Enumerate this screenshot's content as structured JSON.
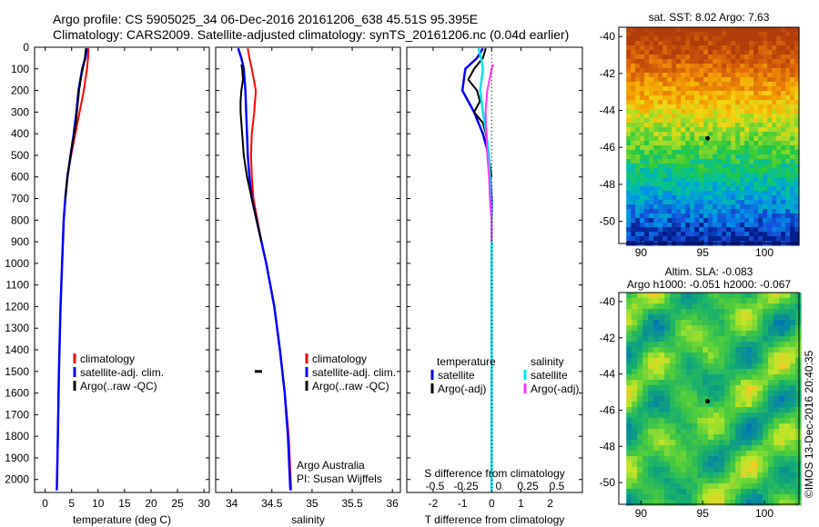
{
  "header": {
    "line1": "Argo profile: CS 5905025_34 06-Dec-2016 20161206_638 45.51S 95.395E",
    "line2": "Climatology: CARS2009. Satellite-adjusted climatology: synTS_20161206.nc (0.04d earlier)"
  },
  "colors": {
    "climatology": "#ff0000",
    "satellite": "#0000ff",
    "argo": "#000000",
    "sal_satellite": "#00e5ee",
    "sal_argo": "#ff33ff"
  },
  "chart_data": [
    {
      "id": "temperature-panel",
      "type": "line",
      "xlabel": "temperature (deg C)",
      "ylabel": "",
      "xlim": [
        -2,
        31
      ],
      "ylim": [
        2060,
        0
      ],
      "xticks": [
        "0",
        "5",
        "10",
        "15",
        "20",
        "25",
        "30"
      ],
      "yticks": [
        "0",
        "100",
        "200",
        "300",
        "400",
        "500",
        "600",
        "700",
        "800",
        "900",
        "1000",
        "1100",
        "1200",
        "1300",
        "1400",
        "1500",
        "1600",
        "1700",
        "1800",
        "1900",
        "2000"
      ],
      "legend": [
        "climatology",
        "satellite-adj. clim.",
        "Argo(..raw -QC)"
      ],
      "series": [
        {
          "name": "climatology",
          "depth": [
            5,
            50,
            100,
            200,
            300,
            400,
            500,
            600,
            700,
            800,
            1000,
            1200,
            1500,
            1800,
            2050
          ],
          "values": [
            8.2,
            8.1,
            7.9,
            7.3,
            6.5,
            5.7,
            4.9,
            4.2,
            3.8,
            3.5,
            3.2,
            2.9,
            2.6,
            2.4,
            2.2
          ]
        },
        {
          "name": "satellite-adj. clim.",
          "depth": [
            5,
            50,
            100,
            200,
            300,
            400,
            500,
            600,
            700,
            800,
            1000,
            1200,
            1500,
            1800,
            2050
          ],
          "values": [
            7.9,
            7.6,
            7.0,
            6.3,
            5.9,
            5.4,
            4.8,
            4.2,
            3.8,
            3.5,
            3.2,
            2.9,
            2.6,
            2.4,
            2.2
          ]
        },
        {
          "name": "Argo(..raw -QC)",
          "depth": [
            5,
            50,
            100,
            150,
            200,
            250,
            300,
            350,
            400,
            450,
            500,
            600,
            700
          ],
          "values": [
            7.7,
            7.5,
            7.1,
            6.7,
            6.4,
            6.2,
            6.0,
            5.8,
            5.5,
            5.1,
            4.8,
            4.2,
            3.8
          ]
        }
      ]
    },
    {
      "id": "salinity-panel",
      "type": "line",
      "xlabel": "salinity",
      "ylabel": "",
      "xlim": [
        33.8,
        36.1
      ],
      "ylim": [
        2060,
        0
      ],
      "xticks": [
        "34",
        "34.5",
        "35",
        "35.5",
        "36"
      ],
      "legend": [
        "climatology",
        "satellite-adj. clim.",
        "Argo(..raw -QC)"
      ],
      "annotations": [
        "Argo Australia",
        "PI: Susan Wijffels"
      ],
      "series": [
        {
          "name": "climatology",
          "depth": [
            5,
            50,
            100,
            200,
            300,
            400,
            500,
            600,
            700,
            800,
            900,
            1000,
            1200,
            1400,
            1600,
            1800,
            2050
          ],
          "values": [
            34.2,
            34.22,
            34.25,
            34.3,
            34.28,
            34.25,
            34.24,
            34.25,
            34.27,
            34.32,
            34.37,
            34.43,
            34.53,
            34.6,
            34.66,
            34.71,
            34.74
          ]
        },
        {
          "name": "satellite-adj. clim.",
          "depth": [
            5,
            50,
            100,
            200,
            300,
            400,
            500,
            600,
            700,
            800,
            900,
            1000,
            1200,
            1400,
            1600,
            1800,
            2050
          ],
          "values": [
            34.08,
            34.12,
            34.15,
            34.17,
            34.18,
            34.19,
            34.2,
            34.22,
            34.25,
            34.31,
            34.37,
            34.43,
            34.53,
            34.6,
            34.66,
            34.7,
            34.73
          ]
        },
        {
          "name": "Argo(..raw -QC)",
          "depth": [
            80,
            100,
            150,
            200,
            250,
            300,
            350,
            400,
            450,
            500,
            550,
            600,
            650,
            700,
            750,
            800,
            850,
            900
          ],
          "values": [
            34.12,
            34.13,
            34.14,
            34.12,
            34.11,
            34.11,
            34.12,
            34.13,
            34.14,
            34.15,
            34.17,
            34.19,
            34.22,
            34.25,
            34.28,
            34.31,
            34.34,
            34.37
          ]
        },
        {
          "name": "Argo outlier",
          "depth": [
            1500
          ],
          "values": [
            34.4
          ]
        }
      ]
    },
    {
      "id": "difference-panel",
      "type": "line",
      "xlabel": "T difference from climatology",
      "xlabel_top": "S difference from climatology",
      "xlim": [
        -2.9,
        3.1
      ],
      "ylim": [
        2060,
        0
      ],
      "xticks": [
        "-2",
        "-1",
        "0",
        "1",
        "2"
      ],
      "xticks_top": [
        "-0.5",
        "-0.25",
        "0",
        "0.25",
        "0.5"
      ],
      "legend_titles": [
        "temperature",
        "salinity"
      ],
      "legend": [
        "satellite",
        "Argo(-adj)",
        "satellite",
        "Argo(-adj)"
      ],
      "series": [
        {
          "name": "temperature satellite",
          "depth": [
            5,
            50,
            100,
            200,
            300,
            400,
            500,
            700,
            1000,
            1500,
            2050
          ],
          "values": [
            -0.3,
            -0.5,
            -0.9,
            -1.0,
            -0.6,
            -0.3,
            -0.1,
            0.0,
            0.0,
            0.0,
            0.0
          ]
        },
        {
          "name": "temperature Argo(-adj)",
          "depth": [
            5,
            50,
            100,
            150,
            200,
            250,
            300,
            350,
            400,
            500,
            600
          ],
          "values": [
            -0.2,
            -0.3,
            -0.6,
            -0.8,
            -0.5,
            -0.4,
            -0.6,
            -0.3,
            -0.2,
            -0.1,
            0.0
          ]
        },
        {
          "name": "salinity satellite",
          "depth": [
            5,
            50,
            100,
            200,
            300,
            400,
            500,
            600,
            800,
            1000,
            1500,
            2050
          ],
          "values": [
            -0.15,
            -0.12,
            -0.1,
            -0.13,
            -0.1,
            -0.06,
            -0.03,
            -0.02,
            0.0,
            0.0,
            0.0,
            0.0
          ]
        },
        {
          "name": "salinity Argo(-adj)",
          "depth": [
            80,
            100,
            200,
            300,
            400,
            500,
            600,
            700,
            800,
            900
          ],
          "values": [
            0.02,
            0.0,
            -0.05,
            -0.07,
            -0.06,
            -0.05,
            -0.03,
            -0.02,
            0.0,
            0.0
          ]
        }
      ]
    }
  ],
  "maps": {
    "sst": {
      "title": "sat. SST: 8.02  Argo: 7.63",
      "yticks": [
        "-40",
        "-42",
        "-44",
        "-46",
        "-48",
        "-50"
      ],
      "xticks": [
        "90",
        "95",
        "100"
      ]
    },
    "sla": {
      "title_line1": "Altim. SLA: -0.083",
      "title_line2": "Argo h1000: -0.051  h2000: -0.067",
      "yticks": [
        "-40",
        "-42",
        "-44",
        "-46",
        "-48",
        "-50"
      ],
      "xticks": [
        "90",
        "95",
        "100"
      ]
    }
  },
  "credit": "©IMOS 13-Dec-2016 20:40:35"
}
